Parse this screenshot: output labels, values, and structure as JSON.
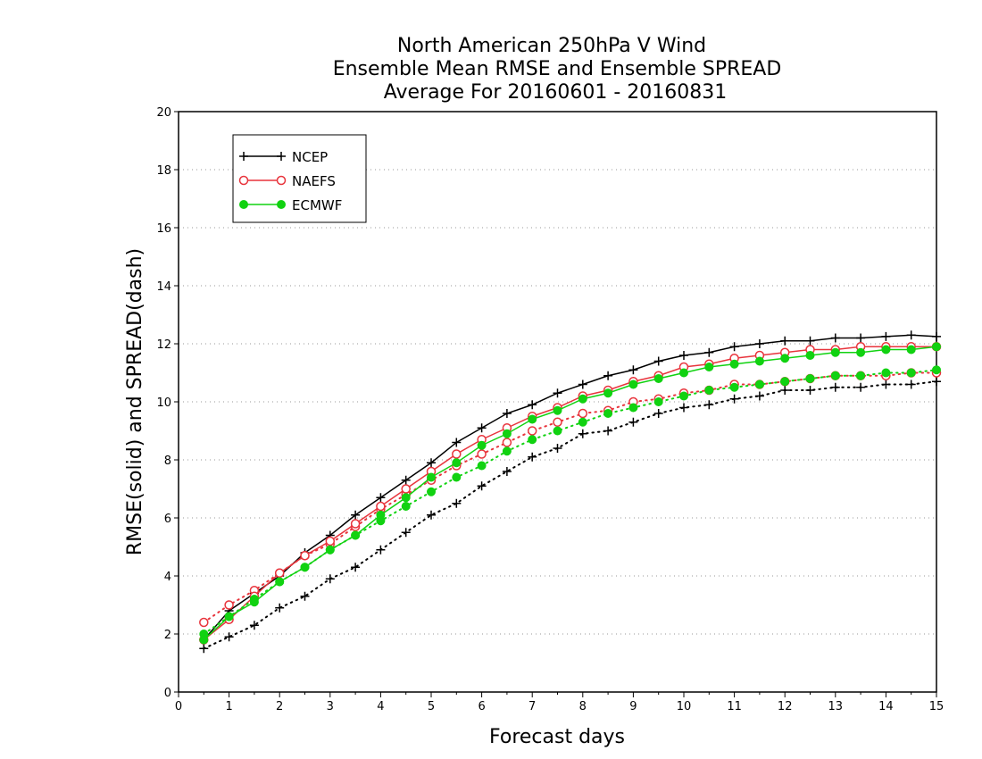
{
  "chart_data": {
    "type": "line",
    "title_lines": [
      "North American 250hPa V Wind",
      "Ensemble Mean RMSE and Ensemble SPREAD",
      "Average For 20160601 - 20160831"
    ],
    "xlabel": "Forecast days",
    "ylabel": "RMSE(solid) and SPREAD(dash)",
    "xlim": [
      0,
      15
    ],
    "ylim": [
      0,
      20
    ],
    "x_ticks": [
      0,
      1,
      2,
      3,
      4,
      5,
      6,
      7,
      8,
      9,
      10,
      11,
      12,
      13,
      14,
      15
    ],
    "y_ticks": [
      0,
      2,
      4,
      6,
      8,
      10,
      12,
      14,
      16,
      18,
      20
    ],
    "grid": "horizontal dotted",
    "legend_position": "top-left",
    "x": [
      0.5,
      1,
      1.5,
      2,
      2.5,
      3,
      3.5,
      4,
      4.5,
      5,
      5.5,
      6,
      6.5,
      7,
      7.5,
      8,
      8.5,
      9,
      9.5,
      10,
      10.5,
      11,
      11.5,
      12,
      12.5,
      13,
      13.5,
      14,
      14.5,
      15
    ],
    "series": [
      {
        "name": "NCEP",
        "color": "#000000",
        "marker": "plus",
        "rmse": [
          1.8,
          2.8,
          3.4,
          4.0,
          4.8,
          5.4,
          6.1,
          6.7,
          7.3,
          7.9,
          8.6,
          9.1,
          9.6,
          9.9,
          10.3,
          10.6,
          10.9,
          11.1,
          11.4,
          11.6,
          11.7,
          11.9,
          12.0,
          12.1,
          12.1,
          12.2,
          12.2,
          12.25,
          12.3,
          12.25
        ],
        "spread": [
          1.5,
          1.9,
          2.3,
          2.9,
          3.3,
          3.9,
          4.3,
          4.9,
          5.5,
          6.1,
          6.5,
          7.1,
          7.6,
          8.1,
          8.4,
          8.9,
          9.0,
          9.3,
          9.6,
          9.8,
          9.9,
          10.1,
          10.2,
          10.4,
          10.4,
          10.5,
          10.5,
          10.6,
          10.6,
          10.7
        ]
      },
      {
        "name": "NAEFS",
        "color": "#e8343c",
        "marker": "open-circle",
        "rmse": [
          1.8,
          2.5,
          3.3,
          4.1,
          4.7,
          5.2,
          5.8,
          6.4,
          7.0,
          7.6,
          8.2,
          8.7,
          9.1,
          9.5,
          9.8,
          10.2,
          10.4,
          10.7,
          10.9,
          11.2,
          11.3,
          11.5,
          11.6,
          11.7,
          11.8,
          11.8,
          11.9,
          11.9,
          11.9,
          11.9
        ],
        "spread": [
          2.4,
          3.0,
          3.5,
          4.1,
          4.7,
          5.1,
          5.7,
          6.3,
          6.8,
          7.3,
          7.8,
          8.2,
          8.6,
          9.0,
          9.3,
          9.6,
          9.7,
          10.0,
          10.1,
          10.3,
          10.4,
          10.6,
          10.6,
          10.7,
          10.8,
          10.9,
          10.9,
          10.9,
          11.0,
          11.0
        ]
      },
      {
        "name": "ECMWF",
        "color": "#11d211",
        "marker": "filled-circle",
        "rmse": [
          1.8,
          2.6,
          3.1,
          3.8,
          4.3,
          4.9,
          5.4,
          6.1,
          6.7,
          7.4,
          7.9,
          8.5,
          8.9,
          9.4,
          9.7,
          10.1,
          10.3,
          10.6,
          10.8,
          11.0,
          11.2,
          11.3,
          11.4,
          11.5,
          11.6,
          11.7,
          11.7,
          11.8,
          11.8,
          11.9
        ],
        "spread": [
          2.0,
          2.6,
          3.2,
          3.8,
          4.3,
          4.9,
          5.4,
          5.9,
          6.4,
          6.9,
          7.4,
          7.8,
          8.3,
          8.7,
          9.0,
          9.3,
          9.6,
          9.8,
          10.0,
          10.2,
          10.4,
          10.5,
          10.6,
          10.7,
          10.8,
          10.9,
          10.9,
          11.0,
          11.0,
          11.1
        ]
      }
    ]
  }
}
